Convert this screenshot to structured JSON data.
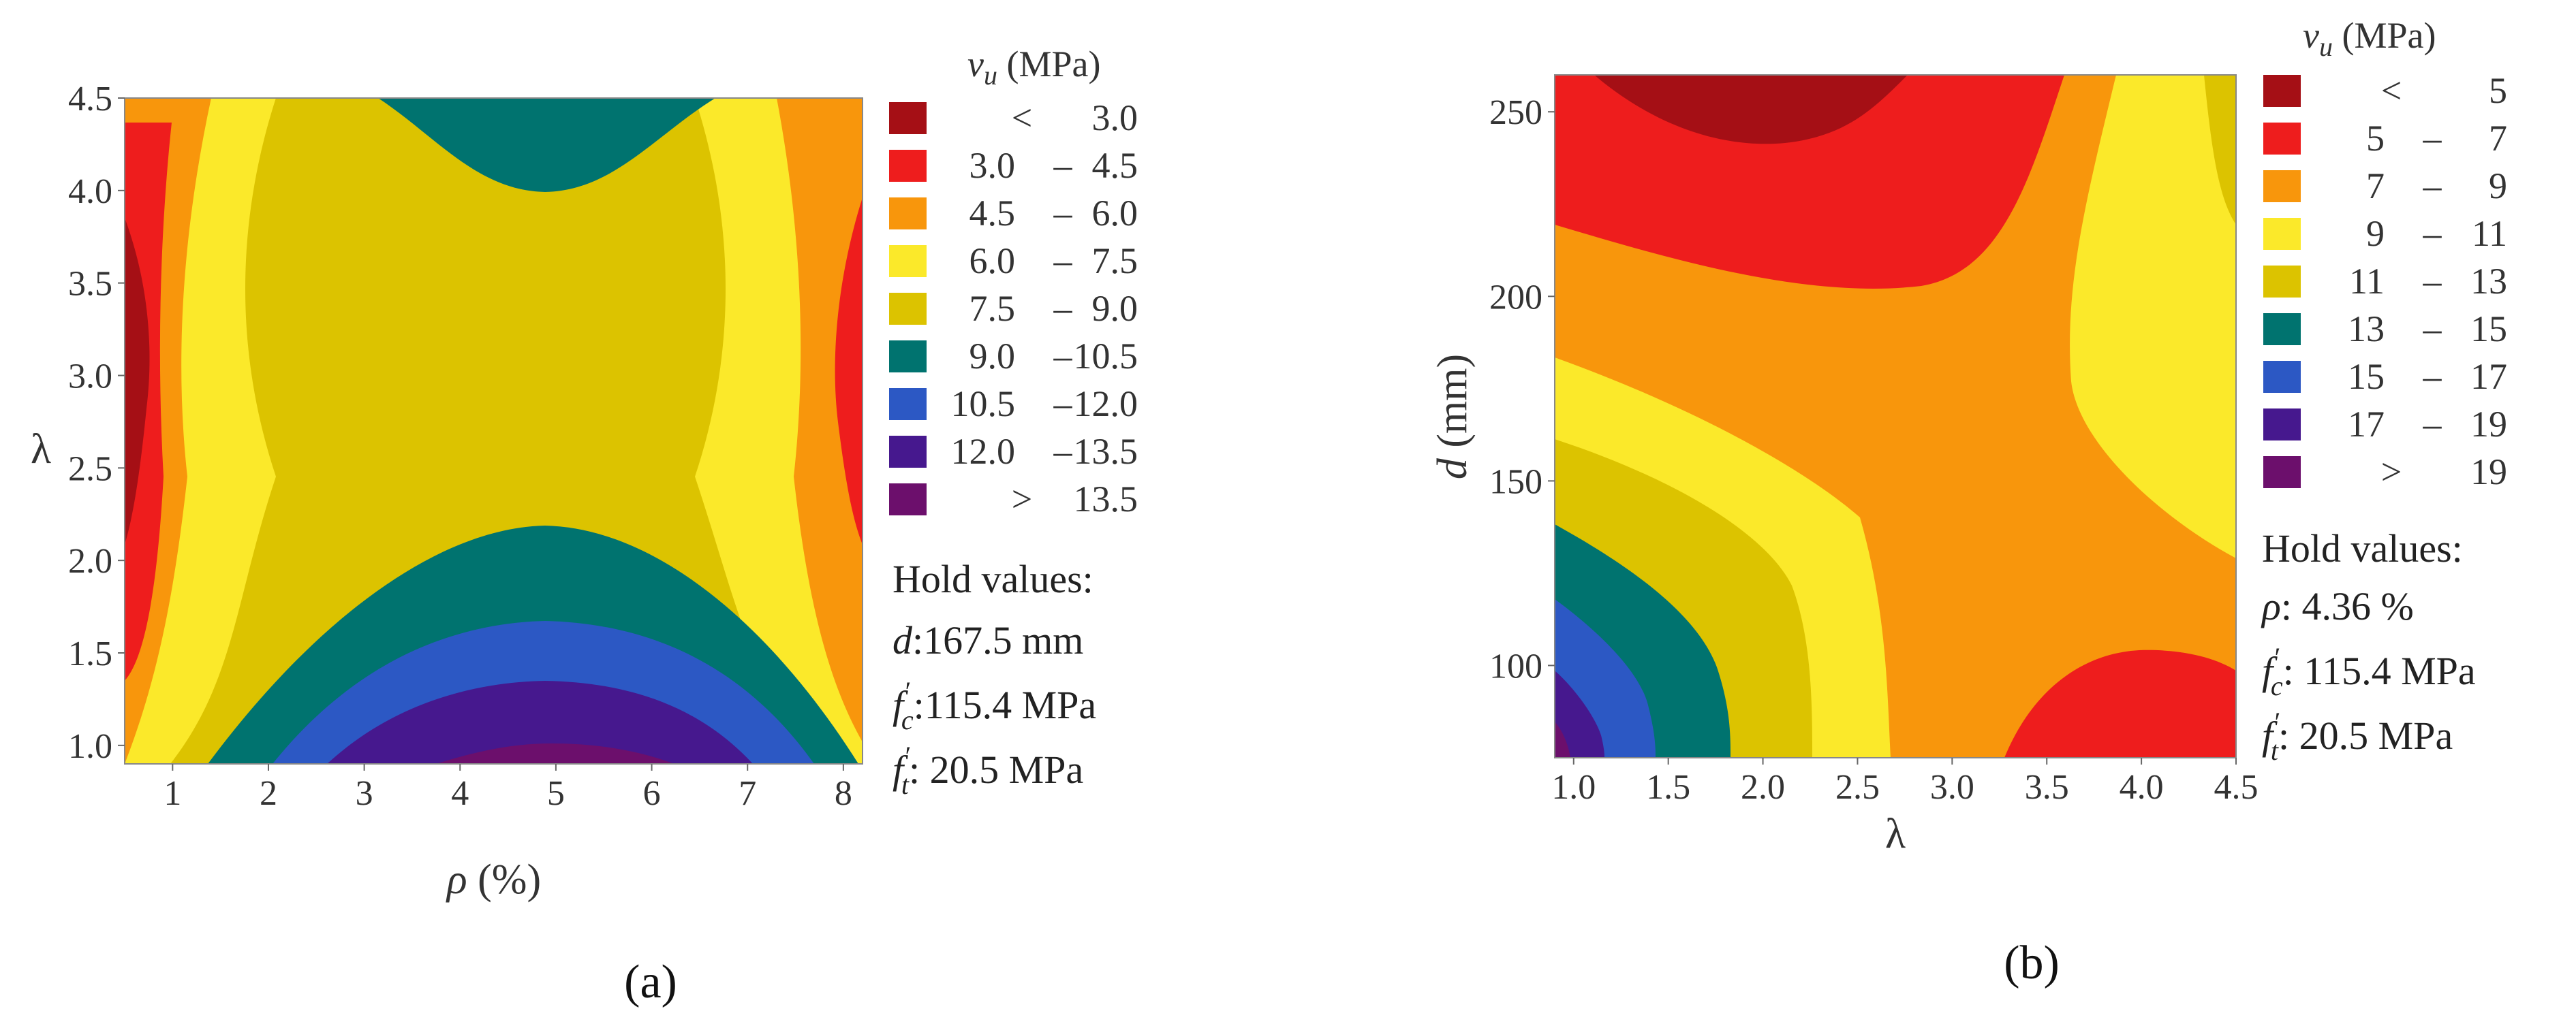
{
  "chart_data": [
    {
      "type": "contour",
      "panel": "(a)",
      "xlabel": "ρ (%)",
      "ylabel": "λ",
      "xlim": [
        0.5,
        8.2
      ],
      "ylim": [
        0.9,
        4.5
      ],
      "xticks": [
        "1",
        "2",
        "3",
        "4",
        "5",
        "6",
        "7",
        "8"
      ],
      "yticks": [
        "1.0",
        "1.5",
        "2.0",
        "2.5",
        "3.0",
        "3.5",
        "4.0",
        "4.5"
      ],
      "legend_title": "v_u (MPa)",
      "legend": [
        {
          "op": "<",
          "lo": "",
          "hi": "3.0",
          "color": "#a50f15"
        },
        {
          "op": "–",
          "lo": "3.0",
          "hi": "4.5",
          "color": "#ee1d1d"
        },
        {
          "op": "–",
          "lo": "4.5",
          "hi": "6.0",
          "color": "#f8960c"
        },
        {
          "op": "–",
          "lo": "6.0",
          "hi": "7.5",
          "color": "#fbe92a"
        },
        {
          "op": "–",
          "lo": "7.5",
          "hi": "9.0",
          "color": "#dcc300"
        },
        {
          "op": "–",
          "lo": "9.0",
          "hi": "10.5",
          "color": "#00736f"
        },
        {
          "op": "–",
          "lo": "10.5",
          "hi": "12.0",
          "color": "#2c58c4"
        },
        {
          "op": "–",
          "lo": "12.0",
          "hi": "13.5",
          "color": "#46188e"
        },
        {
          "op": ">",
          "lo": "",
          "hi": "13.5",
          "color": "#6c0f6c"
        }
      ],
      "hold_title": "Hold values:",
      "hold": [
        {
          "sym": "d",
          "sub": "",
          "val": ":167.5 mm"
        },
        {
          "sym": "f",
          "sub": "c",
          "val": ":115.4 MPa"
        },
        {
          "sym": "f",
          "sub": "t",
          "val": ": 20.5 MPa"
        }
      ]
    },
    {
      "type": "contour",
      "panel": "(b)",
      "xlabel": "λ",
      "ylabel": "d (mm)",
      "xlim": [
        0.9,
        4.5
      ],
      "ylim": [
        75,
        260
      ],
      "xticks": [
        "1.0",
        "1.5",
        "2.0",
        "2.5",
        "3.0",
        "3.5",
        "4.0",
        "4.5"
      ],
      "yticks": [
        "100",
        "150",
        "200",
        "250"
      ],
      "legend_title": "v_u (MPa)",
      "legend": [
        {
          "op": "<",
          "lo": "",
          "hi": "5",
          "color": "#a50f15"
        },
        {
          "op": "–",
          "lo": "5",
          "hi": "7",
          "color": "#ee1d1d"
        },
        {
          "op": "–",
          "lo": "7",
          "hi": "9",
          "color": "#f8960c"
        },
        {
          "op": "–",
          "lo": "9",
          "hi": "11",
          "color": "#fbe92a"
        },
        {
          "op": "–",
          "lo": "11",
          "hi": "13",
          "color": "#dcc300"
        },
        {
          "op": "–",
          "lo": "13",
          "hi": "15",
          "color": "#00736f"
        },
        {
          "op": "–",
          "lo": "15",
          "hi": "17",
          "color": "#2c58c4"
        },
        {
          "op": "–",
          "lo": "17",
          "hi": "19",
          "color": "#46188e"
        },
        {
          "op": ">",
          "lo": "",
          "hi": "19",
          "color": "#6c0f6c"
        }
      ],
      "hold_title": "Hold values:",
      "hold": [
        {
          "sym": "ρ",
          "sub": "",
          "val": ": 4.36 %"
        },
        {
          "sym": "f",
          "sub": "c",
          "val": ": 115.4 MPa"
        },
        {
          "sym": "f",
          "sub": "t",
          "val": ": 20.5 MPa"
        }
      ]
    }
  ]
}
